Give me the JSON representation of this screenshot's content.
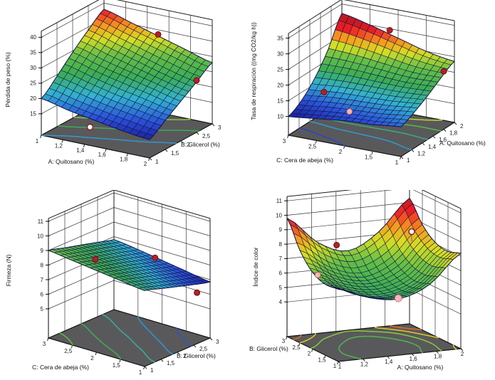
{
  "figure": {
    "background": "#ffffff"
  },
  "colors": {
    "background": "#ffffff",
    "floor_fill": "#59595b",
    "floor_edge": "#141414",
    "wall_line": "#3a3a3c",
    "box_line": "#1c1c1e",
    "mesh_line": "#141447",
    "tick_text": "#1a1a1a",
    "axis_text": "#111111",
    "point_filled_fill": "#b52025",
    "point_filled_stroke": "#701014",
    "point_open_fill": "#ffffff",
    "point_open_stroke": "#8c1a1a",
    "point_pink_fill": "#f3b8bb",
    "point_pink_stroke": "#b2595e",
    "stem": "#666666",
    "surface_stops": [
      [
        0,
        "#181690"
      ],
      [
        0.15,
        "#2b52d8"
      ],
      [
        0.3,
        "#33b3cf"
      ],
      [
        0.45,
        "#3aad53"
      ],
      [
        0.6,
        "#66bf45"
      ],
      [
        0.72,
        "#d7df23"
      ],
      [
        0.82,
        "#f7941d"
      ],
      [
        0.92,
        "#ed1c24"
      ],
      [
        1,
        "#c21a1f"
      ]
    ]
  },
  "chart_data": [
    {
      "id": "perdida-de-peso",
      "type": "surface3d",
      "zlabel": "Pérdida de peso (%)",
      "xaxis": {
        "label": "A: Quitosano (%)",
        "start": 1,
        "end": 2,
        "ticks": [
          {
            "v": 1,
            "t": "1"
          },
          {
            "v": 1.2,
            "t": "1,2"
          },
          {
            "v": 1.4,
            "t": "1,4"
          },
          {
            "v": 1.6,
            "t": "1,6"
          },
          {
            "v": 1.8,
            "t": "1,8"
          },
          {
            "v": 2,
            "t": "2"
          }
        ]
      },
      "yaxis": {
        "label": "B: Glicerol (%)",
        "start": 1,
        "end": 3,
        "ticks": [
          {
            "v": 1,
            "t": "1"
          },
          {
            "v": 1.5,
            "t": "1,5"
          },
          {
            "v": 2,
            "t": "2"
          },
          {
            "v": 2.5,
            "t": "2,5"
          },
          {
            "v": 3,
            "t": "3"
          }
        ]
      },
      "zaxis": {
        "ticks": [
          {
            "v": 15,
            "t": "15"
          },
          {
            "v": 20,
            "t": "20"
          },
          {
            "v": 25,
            "t": "25"
          },
          {
            "v": 30,
            "t": "30"
          },
          {
            "v": 35,
            "t": "35"
          },
          {
            "v": 40,
            "t": "40"
          }
        ]
      },
      "x_values": [
        1,
        1.25,
        1.5,
        1.75,
        2
      ],
      "y_values": [
        1,
        1.5,
        2,
        2.5,
        3
      ],
      "z_grid": [
        [
          20,
          18,
          16.5,
          15,
          14
        ],
        [
          24.5,
          22.5,
          20.5,
          19,
          17.5
        ],
        [
          29.5,
          27,
          25,
          23,
          21
        ],
        [
          34,
          31.5,
          29,
          26.5,
          24.5
        ],
        [
          38,
          35.5,
          33,
          30.5,
          28
        ]
      ],
      "color_domain": [
        13,
        40
      ],
      "contour_levels": [
        20,
        25,
        30,
        35
      ],
      "points": [
        {
          "x": 1.5,
          "y": 3,
          "z": 33.5,
          "style": "filled"
        },
        {
          "x": 2,
          "y": 2.5,
          "z": 25,
          "style": "filled"
        },
        {
          "x": 1.45,
          "y": 1,
          "z": 14,
          "style": "open"
        }
      ]
    },
    {
      "id": "tasa-de-respiracion",
      "type": "surface3d",
      "zlabel": "Tasa de respiración ((mg CO2/kg h))",
      "xaxis": {
        "label": "C: Cera de abeja (%)",
        "start": 3,
        "end": 1,
        "ticks": [
          {
            "v": 3,
            "t": "3"
          },
          {
            "v": 2.5,
            "t": "2,5"
          },
          {
            "v": 2,
            "t": "2"
          },
          {
            "v": 1.5,
            "t": "1,5"
          },
          {
            "v": 1,
            "t": "1"
          }
        ]
      },
      "yaxis": {
        "label": "A: Quitosano (%)",
        "start": 1,
        "end": 2,
        "ticks": [
          {
            "v": 1,
            "t": "1"
          },
          {
            "v": 1.2,
            "t": "1,2"
          },
          {
            "v": 1.4,
            "t": "1,4"
          },
          {
            "v": 1.6,
            "t": "1,6"
          },
          {
            "v": 1.8,
            "t": "1,8"
          },
          {
            "v": 2,
            "t": "2"
          }
        ]
      },
      "zaxis": {
        "ticks": [
          {
            "v": 10,
            "t": "10"
          },
          {
            "v": 15,
            "t": "15"
          },
          {
            "v": 20,
            "t": "20"
          },
          {
            "v": 25,
            "t": "25"
          },
          {
            "v": 30,
            "t": "30"
          },
          {
            "v": 35,
            "t": "35"
          }
        ]
      },
      "x_values": [
        3,
        2.5,
        2,
        1.5,
        1
      ],
      "y_values": [
        1,
        1.25,
        1.5,
        1.75,
        2
      ],
      "z_grid": [
        [
          10,
          11,
          12,
          12.5,
          13.5
        ],
        [
          12.5,
          13.5,
          14,
          14.5,
          15.5
        ],
        [
          17,
          17.5,
          17.5,
          17.5,
          18
        ],
        [
          23.5,
          23,
          22,
          21,
          21
        ],
        [
          32,
          30,
          27.5,
          25,
          23.5
        ]
      ],
      "color_domain": [
        9.5,
        30.5
      ],
      "contour_levels": [
        12,
        15,
        18,
        21,
        24
      ],
      "points": [
        {
          "x": 2.7,
          "y": 1.35,
          "z": 15,
          "style": "filled"
        },
        {
          "x": 2.2,
          "y": 1.3,
          "z": 11,
          "style": "pink",
          "stem": -12
        },
        {
          "x": 2.15,
          "y": 2,
          "z": 29.5,
          "style": "filled"
        },
        {
          "x": 1,
          "y": 1.8,
          "z": 22.5,
          "style": "filled"
        }
      ]
    },
    {
      "id": "firmeza",
      "type": "surface3d",
      "zlabel": "Firmeza (N)",
      "xaxis": {
        "label": "C: Cera de abeja (%)",
        "start": 3,
        "end": 1,
        "ticks": [
          {
            "v": 3,
            "t": "3"
          },
          {
            "v": 2.5,
            "t": "2,5"
          },
          {
            "v": 2,
            "t": "2"
          },
          {
            "v": 1.5,
            "t": "1,5"
          },
          {
            "v": 1,
            "t": "1"
          }
        ]
      },
      "yaxis": {
        "label": "B: Glicerol (%)",
        "start": 1,
        "end": 3,
        "ticks": [
          {
            "v": 1,
            "t": "1"
          },
          {
            "v": 1.5,
            "t": "1,5"
          },
          {
            "v": 2,
            "t": "2"
          },
          {
            "v": 2.5,
            "t": "2,5"
          },
          {
            "v": 3,
            "t": "3"
          }
        ]
      },
      "zaxis": {
        "ticks": [
          {
            "v": 5,
            "t": "5"
          },
          {
            "v": 6,
            "t": "6"
          },
          {
            "v": 7,
            "t": "7"
          },
          {
            "v": 8,
            "t": "8"
          },
          {
            "v": 9,
            "t": "9"
          },
          {
            "v": 10,
            "t": "10"
          },
          {
            "v": 11,
            "t": "11"
          }
        ]
      },
      "x_values": [
        3,
        2.5,
        2,
        1.5,
        1
      ],
      "y_values": [
        1,
        1.5,
        2,
        2.5,
        3
      ],
      "z_grid": [
        [
          9,
          8.8,
          8.6,
          8.4,
          8.2
        ],
        [
          8.7,
          8.5,
          8.3,
          8.1,
          7.85
        ],
        [
          8.4,
          8.2,
          8,
          7.75,
          7.5
        ],
        [
          8.1,
          7.9,
          7.65,
          7.4,
          7.15
        ],
        [
          7.8,
          7.6,
          7.35,
          7.1,
          6.85
        ]
      ],
      "color_domain": [
        6.65,
        10.4
      ],
      "contour_levels": [
        7.2,
        7.6,
        8,
        8.4,
        8.8
      ],
      "points": [
        {
          "x": 2.5,
          "y": 1.7,
          "z": 8.2,
          "style": "filled"
        },
        {
          "x": 1.6,
          "y": 2.2,
          "z": 8.7,
          "style": "filled"
        },
        {
          "x": 1,
          "y": 2.6,
          "z": 6.5,
          "style": "filled"
        }
      ]
    },
    {
      "id": "indice-de-color",
      "type": "surface3d",
      "zlabel": "Índice de color",
      "xaxis": {
        "label": "B: Glicerol (%)",
        "start": 3,
        "end": 1,
        "ticks": [
          {
            "v": 3,
            "t": "3"
          },
          {
            "v": 2.5,
            "t": "2,5"
          },
          {
            "v": 2,
            "t": "2"
          },
          {
            "v": 1.5,
            "t": "1,5"
          },
          {
            "v": 1,
            "t": "1"
          }
        ]
      },
      "yaxis": {
        "label": "A: Quitosano (%)",
        "start": 1,
        "end": 2,
        "ticks": [
          {
            "v": 1,
            "t": "1"
          },
          {
            "v": 1.2,
            "t": "1,2"
          },
          {
            "v": 1.4,
            "t": "1,4"
          },
          {
            "v": 1.6,
            "t": "1,6"
          },
          {
            "v": 1.8,
            "t": "1,8"
          },
          {
            "v": 2,
            "t": "2"
          }
        ]
      },
      "zaxis": {
        "ticks": [
          {
            "v": 4,
            "t": "4"
          },
          {
            "v": 5,
            "t": "5"
          },
          {
            "v": 6,
            "t": "6"
          },
          {
            "v": 7,
            "t": "7"
          },
          {
            "v": 8,
            "t": "8"
          },
          {
            "v": 9,
            "t": "9"
          },
          {
            "v": 10,
            "t": "10"
          },
          {
            "v": 11,
            "t": "11"
          }
        ]
      },
      "x_values": [
        3,
        2.5,
        2,
        1.5,
        1
      ],
      "y_values": [
        1,
        1.25,
        1.5,
        1.75,
        2
      ],
      "z_grid": [
        [
          9.8,
          8,
          6.9,
          6.5,
          6.6
        ],
        [
          7.9,
          6.6,
          5.9,
          5.6,
          5.8
        ],
        [
          7.1,
          6,
          5.5,
          5.3,
          5.5
        ],
        [
          8.2,
          6.9,
          6.2,
          6,
          6.3
        ],
        [
          10.3,
          8.9,
          8.1,
          7.9,
          8.2
        ]
      ],
      "color_domain": [
        1.2,
        10.3
      ],
      "contour_levels": [
        6,
        7,
        8,
        9
      ],
      "points": [
        {
          "x": 2.5,
          "y": 1.3,
          "z": 8.1,
          "style": "filled"
        },
        {
          "x": 2.2,
          "y": 1.85,
          "z": 8.8,
          "style": "open",
          "stem": 14
        },
        {
          "x": 1.8,
          "y": 1,
          "z": 6.9,
          "style": "pink"
        },
        {
          "x": 1.05,
          "y": 1.5,
          "z": 5.5,
          "style": "ring"
        }
      ]
    }
  ]
}
